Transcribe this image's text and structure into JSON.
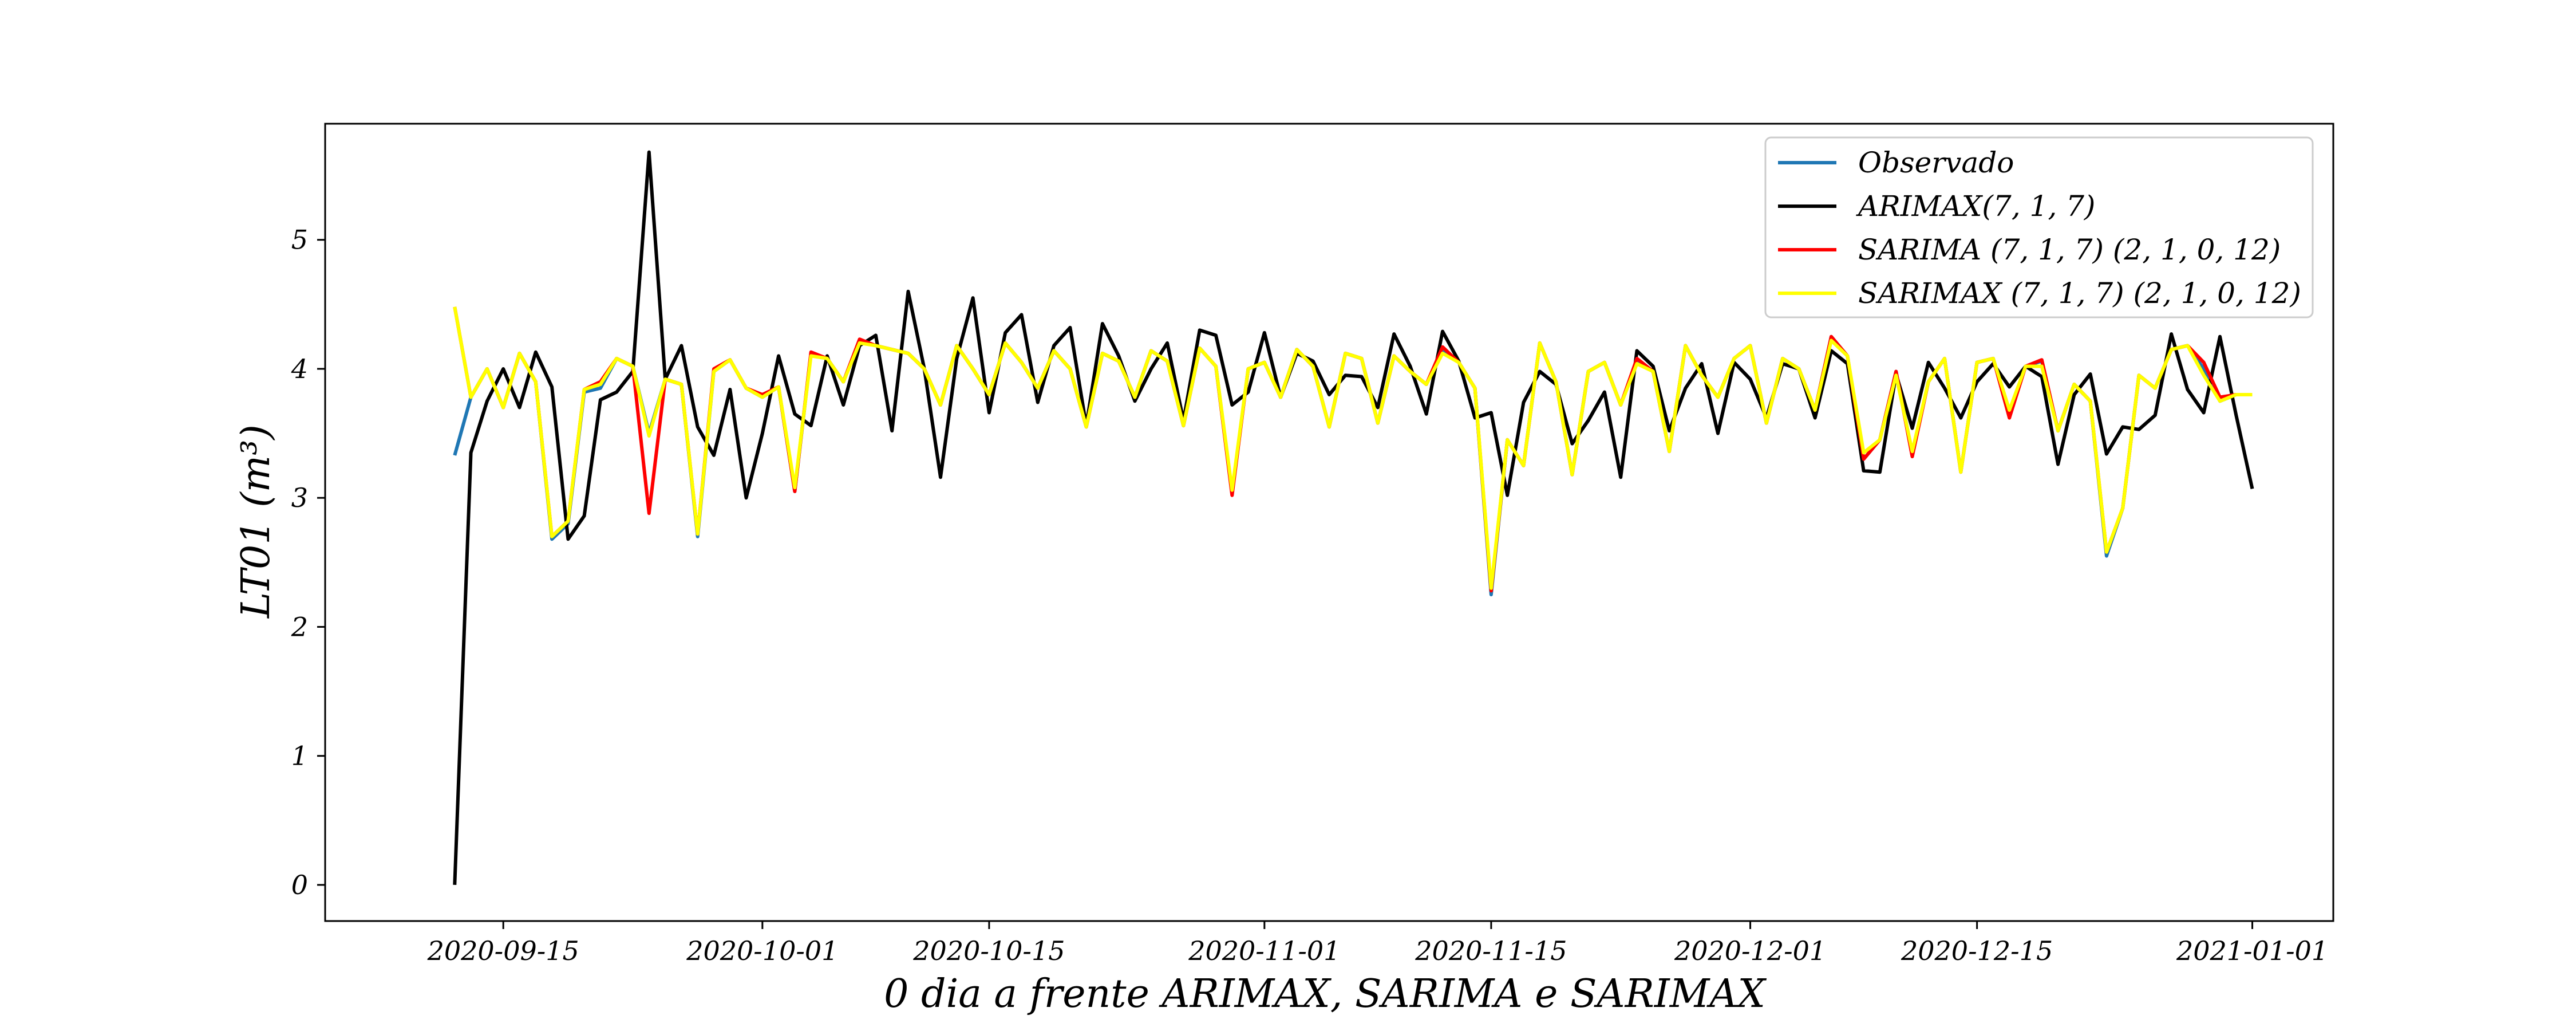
{
  "chart_data": {
    "type": "line",
    "title": "",
    "xlabel": "0 dia a frente ARIMAX, SARIMA e SARIMAX",
    "ylabel": "LT01 (m³)",
    "ylim": [
      -0.28,
      5.9
    ],
    "xlim": [
      "2020-09-04",
      "2021-01-06"
    ],
    "x_ticks": [
      "2020-09-15",
      "2020-10-01",
      "2020-10-15",
      "2020-11-01",
      "2020-11-15",
      "2020-12-01",
      "2020-12-15",
      "2021-01-01"
    ],
    "y_ticks": [
      0,
      1,
      2,
      3,
      4,
      5
    ],
    "x_start": "2020-09-12",
    "x_end": "2021-01-01",
    "grid": false,
    "legend_position": "top-right",
    "series": [
      {
        "name": "Observado",
        "color": "#1f77b4",
        "values": [
          3.33,
          3.78,
          4.0,
          3.7,
          4.12,
          3.9,
          2.68,
          2.8,
          3.82,
          3.85,
          4.08,
          4.02,
          3.5,
          3.92,
          3.88,
          2.7,
          3.98,
          4.07,
          3.85,
          3.78,
          3.86,
          3.05,
          4.12,
          4.08,
          3.9,
          4.22,
          4.18,
          4.15,
          4.12,
          4.0,
          3.72,
          4.18,
          4.0,
          3.8,
          4.2,
          4.05,
          3.85,
          4.14,
          4.0,
          3.55,
          4.12,
          4.06,
          3.78,
          4.14,
          4.06,
          3.56,
          4.16,
          4.02,
          3.04,
          4.0,
          4.05,
          3.78,
          4.15,
          4.02,
          3.55,
          4.12,
          4.08,
          3.58,
          4.1,
          3.98,
          3.88,
          4.15,
          4.05,
          3.85,
          2.25,
          3.45,
          3.25,
          4.2,
          3.9,
          3.18,
          3.98,
          4.05,
          3.72,
          4.06,
          3.98,
          3.36,
          4.18,
          3.95,
          3.78,
          4.08,
          4.18,
          3.58,
          4.08,
          4.0,
          3.68,
          4.25,
          4.1,
          3.3,
          3.45,
          3.98,
          3.34,
          3.9,
          4.08,
          3.2,
          4.05,
          4.08,
          3.65,
          4.02,
          4.06,
          3.52,
          3.88,
          3.75,
          2.55,
          2.92,
          3.95,
          3.85,
          4.15,
          4.18,
          4.0,
          3.75,
          3.8,
          3.8
        ]
      },
      {
        "name": "ARIMAX(7, 1, 7)",
        "color": "#000000",
        "values": [
          0.0,
          3.35,
          3.75,
          4.0,
          3.7,
          4.13,
          3.86,
          2.68,
          2.86,
          3.76,
          3.82,
          3.98,
          5.68,
          3.92,
          4.18,
          3.55,
          3.33,
          3.84,
          3.0,
          3.5,
          4.1,
          3.65,
          3.56,
          4.1,
          3.72,
          4.18,
          4.26,
          3.52,
          4.6,
          4.0,
          3.16,
          4.08,
          4.55,
          3.66,
          4.28,
          4.42,
          3.74,
          4.18,
          4.32,
          3.56,
          4.35,
          4.1,
          3.75,
          4.0,
          4.2,
          3.6,
          4.3,
          4.26,
          3.72,
          3.82,
          4.28,
          3.78,
          4.12,
          4.06,
          3.8,
          3.95,
          3.94,
          3.7,
          4.27,
          4.02,
          3.65,
          4.29,
          4.06,
          3.62,
          3.66,
          3.02,
          3.74,
          3.98,
          3.88,
          3.42,
          3.6,
          3.82,
          3.16,
          4.14,
          4.02,
          3.52,
          3.85,
          4.04,
          3.5,
          4.05,
          3.92,
          3.62,
          4.04,
          4.0,
          3.62,
          4.14,
          4.04,
          3.21,
          3.2,
          3.96,
          3.54,
          4.05,
          3.85,
          3.62,
          3.9,
          4.04,
          3.86,
          4.02,
          3.94,
          3.26,
          3.8,
          3.96,
          3.34,
          3.55,
          3.53,
          3.64,
          4.27,
          3.84,
          3.66,
          4.25,
          3.64,
          3.07
        ]
      },
      {
        "name": "SARIMA (7, 1, 7) (2, 1, 0, 12)",
        "color": "#ff0000",
        "values": [
          4.48,
          3.78,
          4.0,
          3.7,
          4.12,
          3.9,
          2.7,
          2.82,
          3.84,
          3.9,
          4.08,
          4.02,
          2.88,
          3.92,
          3.88,
          2.72,
          4.0,
          4.07,
          3.85,
          3.8,
          3.86,
          3.05,
          4.13,
          4.08,
          3.9,
          4.23,
          4.18,
          4.15,
          4.12,
          4.0,
          3.72,
          4.18,
          4.0,
          3.8,
          4.2,
          4.05,
          3.85,
          4.14,
          4.0,
          3.55,
          4.12,
          4.06,
          3.78,
          4.14,
          4.06,
          3.56,
          4.16,
          4.02,
          3.02,
          4.0,
          4.05,
          3.78,
          4.15,
          4.02,
          3.55,
          4.12,
          4.08,
          3.58,
          4.1,
          3.98,
          3.88,
          4.17,
          4.05,
          3.85,
          2.28,
          3.45,
          3.25,
          4.2,
          3.9,
          3.18,
          3.98,
          4.05,
          3.72,
          4.08,
          3.98,
          3.36,
          4.18,
          3.95,
          3.78,
          4.08,
          4.18,
          3.58,
          4.08,
          4.0,
          3.68,
          4.25,
          4.1,
          3.3,
          3.45,
          3.98,
          3.32,
          3.9,
          4.08,
          3.2,
          4.05,
          4.08,
          3.62,
          4.02,
          4.07,
          3.52,
          3.88,
          3.75,
          2.58,
          2.92,
          3.95,
          3.85,
          4.15,
          4.18,
          4.05,
          3.78,
          3.8,
          3.8
        ]
      },
      {
        "name": "SARIMAX (7, 1, 7) (2, 1, 0, 12)",
        "color": "#ffff00",
        "values": [
          4.48,
          3.78,
          4.0,
          3.7,
          4.12,
          3.9,
          2.7,
          2.82,
          3.84,
          3.88,
          4.08,
          4.02,
          3.48,
          3.92,
          3.88,
          2.72,
          3.98,
          4.07,
          3.85,
          3.78,
          3.86,
          3.08,
          4.1,
          4.08,
          3.9,
          4.2,
          4.18,
          4.15,
          4.12,
          4.0,
          3.72,
          4.18,
          4.0,
          3.8,
          4.2,
          4.05,
          3.85,
          4.14,
          4.0,
          3.55,
          4.12,
          4.06,
          3.78,
          4.14,
          4.06,
          3.56,
          4.16,
          4.02,
          3.06,
          4.0,
          4.05,
          3.78,
          4.15,
          4.02,
          3.55,
          4.12,
          4.08,
          3.58,
          4.1,
          3.98,
          3.88,
          4.12,
          4.05,
          3.85,
          2.3,
          3.45,
          3.25,
          4.2,
          3.9,
          3.18,
          3.98,
          4.05,
          3.72,
          4.04,
          3.98,
          3.36,
          4.18,
          3.95,
          3.78,
          4.08,
          4.18,
          3.58,
          4.08,
          4.0,
          3.68,
          4.22,
          4.1,
          3.35,
          3.45,
          3.95,
          3.36,
          3.9,
          4.08,
          3.2,
          4.05,
          4.08,
          3.68,
          4.02,
          4.02,
          3.52,
          3.88,
          3.75,
          2.58,
          2.92,
          3.95,
          3.85,
          4.15,
          4.18,
          3.95,
          3.75,
          3.8,
          3.8
        ]
      }
    ]
  }
}
